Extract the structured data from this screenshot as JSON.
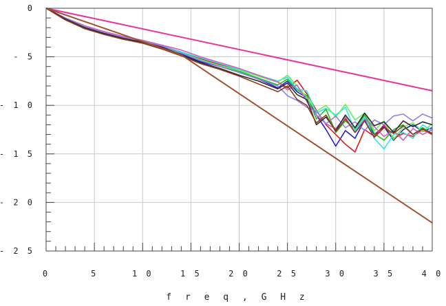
{
  "chart_data": {
    "type": "line",
    "title": "",
    "xlabel": "f r e q ,   G H z",
    "ylabel": "",
    "xlim": [
      0,
      40
    ],
    "ylim": [
      -25,
      0
    ],
    "x_ticks": [
      0,
      5,
      10,
      15,
      20,
      25,
      30,
      35,
      40
    ],
    "y_ticks": [
      0,
      -5,
      -10,
      -15,
      -20,
      -25
    ],
    "x_tick_labels": [
      "0",
      "5",
      "1 0",
      "1 5",
      "2 0",
      "2 5",
      "3 0",
      "3 5",
      "4 0"
    ],
    "y_tick_labels": [
      "0",
      "- 5",
      "- 1 0",
      "- 1 5",
      "- 2 0",
      "- 2 5"
    ],
    "grid": true,
    "limit_lines": [
      {
        "color": "#e8339a",
        "x": [
          0,
          40
        ],
        "y": [
          0,
          -8.5
        ]
      },
      {
        "color": "#a0522d",
        "x": [
          0,
          14,
          40
        ],
        "y": [
          0,
          -4.8,
          -22.1
        ]
      }
    ],
    "series": [
      {
        "color": "#1f1fd0",
        "x": [
          0,
          2,
          4,
          6,
          8,
          10,
          12,
          14,
          16,
          18,
          20,
          22,
          24,
          25,
          26,
          27,
          28,
          29,
          30,
          31,
          32,
          33,
          34,
          35,
          36,
          37,
          38,
          39,
          40
        ],
        "y": [
          0,
          -1.2,
          -2,
          -2.6,
          -3.0,
          -3.5,
          -4.0,
          -4.7,
          -5.5,
          -6.0,
          -6.6,
          -7.3,
          -8.2,
          -7.5,
          -8.6,
          -9.2,
          -11.0,
          -12.5,
          -14.2,
          -12.6,
          -13.4,
          -11.5,
          -13.0,
          -12.2,
          -13.6,
          -12.5,
          -12.0,
          -12.7,
          -12.3
        ]
      },
      {
        "color": "#e01818",
        "x": [
          0,
          2,
          4,
          6,
          8,
          10,
          12,
          14,
          16,
          18,
          20,
          22,
          24,
          25,
          26,
          27,
          28,
          29,
          30,
          31,
          32,
          33,
          34,
          35,
          36,
          37,
          38,
          39,
          40
        ],
        "y": [
          0,
          -1.1,
          -1.9,
          -2.5,
          -3.0,
          -3.4,
          -3.9,
          -4.5,
          -5.2,
          -5.8,
          -6.3,
          -7.0,
          -7.6,
          -8.2,
          -7.4,
          -8.8,
          -10.5,
          -12.0,
          -13.0,
          -14.0,
          -14.8,
          -12.5,
          -13.2,
          -12.0,
          -13.4,
          -12.9,
          -13.2,
          -12.5,
          -13.0
        ]
      },
      {
        "color": "#18c018",
        "x": [
          0,
          2,
          4,
          6,
          8,
          10,
          12,
          14,
          16,
          18,
          20,
          22,
          24,
          25,
          26,
          27,
          28,
          29,
          30,
          31,
          32,
          33,
          34,
          35,
          36,
          37,
          38,
          39,
          40
        ],
        "y": [
          0,
          -1.2,
          -2.1,
          -2.5,
          -3.1,
          -3.6,
          -4.1,
          -4.6,
          -5.3,
          -6.0,
          -6.5,
          -7.2,
          -7.9,
          -7.3,
          -8.4,
          -9.0,
          -11.4,
          -10.4,
          -12.8,
          -11.6,
          -12.4,
          -11.0,
          -12.9,
          -13.6,
          -12.5,
          -12.0,
          -13.0,
          -12.3,
          -12.9
        ]
      },
      {
        "color": "#30e8e0",
        "x": [
          0,
          2,
          4,
          6,
          8,
          10,
          12,
          14,
          16,
          18,
          20,
          22,
          24,
          25,
          26,
          27,
          28,
          29,
          30,
          31,
          32,
          33,
          34,
          35,
          36,
          37,
          38,
          39,
          40
        ],
        "y": [
          0,
          -1.1,
          -2.0,
          -2.6,
          -3.0,
          -3.5,
          -3.9,
          -4.5,
          -5.1,
          -5.7,
          -6.3,
          -6.9,
          -7.5,
          -7.1,
          -8.3,
          -8.5,
          -10.8,
          -10.3,
          -11.0,
          -10.2,
          -12.6,
          -11.2,
          -13.4,
          -14.5,
          -13.0,
          -12.8,
          -13.4,
          -12.0,
          -12.6
        ]
      },
      {
        "color": "#60f060",
        "x": [
          0,
          2,
          4,
          6,
          8,
          10,
          12,
          14,
          16,
          18,
          20,
          22,
          24,
          25,
          26,
          27,
          28,
          29,
          30,
          31,
          32,
          33,
          34,
          35,
          36,
          37,
          38,
          39,
          40
        ],
        "y": [
          0,
          -1.1,
          -1.9,
          -2.6,
          -3.1,
          -3.5,
          -4.0,
          -4.6,
          -5.3,
          -5.9,
          -6.4,
          -7.0,
          -7.6,
          -6.9,
          -8.0,
          -9.2,
          -10.6,
          -10.0,
          -11.2,
          -9.9,
          -11.5,
          -10.8,
          -12.6,
          -11.6,
          -13.5,
          -12.2,
          -11.8,
          -12.7,
          -11.9
        ]
      },
      {
        "color": "#d060c0",
        "x": [
          0,
          2,
          4,
          6,
          8,
          10,
          12,
          14,
          16,
          18,
          20,
          22,
          24,
          25,
          26,
          27,
          28,
          29,
          30,
          31,
          32,
          33,
          34,
          35,
          36,
          37,
          38,
          39,
          40
        ],
        "y": [
          0,
          -1.0,
          -1.8,
          -2.4,
          -2.9,
          -3.3,
          -3.8,
          -4.3,
          -5.0,
          -5.6,
          -6.2,
          -6.9,
          -7.6,
          -8.4,
          -7.9,
          -9.6,
          -11.0,
          -11.9,
          -12.4,
          -11.2,
          -12.8,
          -11.4,
          -12.2,
          -13.2,
          -12.6,
          -13.6,
          -12.4,
          -13.0,
          -12.5
        ]
      },
      {
        "color": "#9080e8",
        "x": [
          0,
          2,
          4,
          6,
          8,
          10,
          12,
          14,
          16,
          18,
          20,
          22,
          24,
          25,
          26,
          27,
          28,
          29,
          30,
          31,
          32,
          33,
          34,
          35,
          36,
          37,
          38,
          39,
          40
        ],
        "y": [
          0,
          -1.0,
          -1.9,
          -2.5,
          -3.0,
          -3.4,
          -3.9,
          -4.6,
          -5.4,
          -6.0,
          -6.6,
          -7.3,
          -8.0,
          -9.0,
          -9.5,
          -10.2,
          -10.6,
          -11.9,
          -11.1,
          -12.3,
          -11.7,
          -12.6,
          -11.5,
          -12.0,
          -11.1,
          -10.9,
          -11.6,
          -10.9,
          -11.3
        ]
      },
      {
        "color": "#2a2a2a",
        "x": [
          0,
          2,
          4,
          6,
          8,
          10,
          12,
          14,
          16,
          18,
          20,
          22,
          24,
          25,
          26,
          27,
          28,
          29,
          30,
          31,
          32,
          33,
          34,
          35,
          36,
          37,
          38,
          39,
          40
        ],
        "y": [
          0,
          -1.1,
          -2.0,
          -2.6,
          -3.1,
          -3.5,
          -4.0,
          -4.8,
          -5.6,
          -6.2,
          -6.9,
          -7.5,
          -8.3,
          -7.7,
          -8.9,
          -9.4,
          -12.0,
          -11.2,
          -12.6,
          -11.0,
          -12.3,
          -10.8,
          -12.1,
          -11.7,
          -12.8,
          -11.6,
          -12.2,
          -11.7,
          -12.0
        ]
      },
      {
        "color": "#8a3a20",
        "x": [
          0,
          2,
          4,
          6,
          8,
          10,
          12,
          14,
          16,
          18,
          20,
          22,
          24,
          25,
          26,
          27,
          28,
          29,
          30,
          31,
          32,
          33,
          34,
          35,
          36,
          37,
          38,
          39,
          40
        ],
        "y": [
          0,
          -1.2,
          -2.1,
          -2.7,
          -3.2,
          -3.6,
          -4.2,
          -4.9,
          -5.7,
          -6.3,
          -7.0,
          -7.8,
          -8.6,
          -8.0,
          -9.4,
          -10.0,
          -11.8,
          -11.0,
          -12.7,
          -11.4,
          -12.8,
          -11.6,
          -13.3,
          -12.3,
          -12.9,
          -12.1,
          -13.0,
          -12.4,
          -12.9
        ]
      }
    ]
  }
}
